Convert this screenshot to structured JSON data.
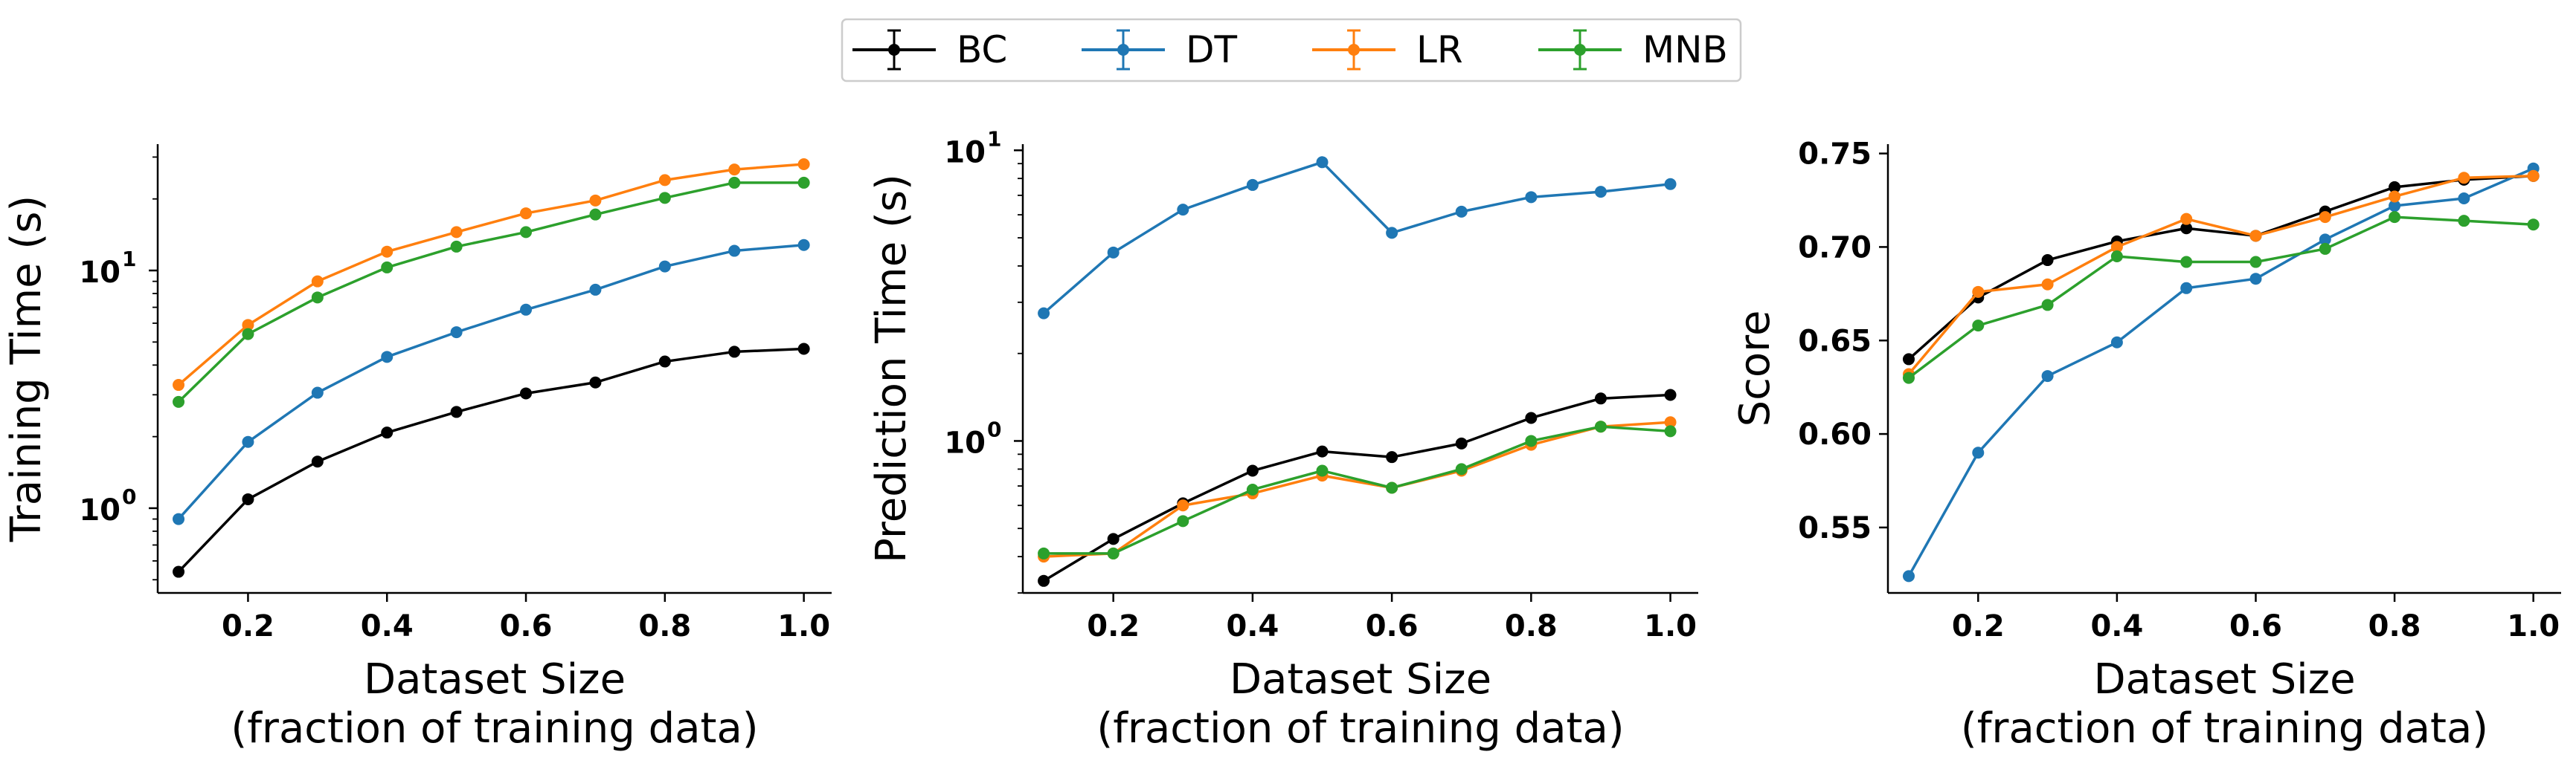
{
  "legend": {
    "placement": "top-center",
    "entries": [
      {
        "name": "BC",
        "color": "#000000"
      },
      {
        "name": "DT",
        "color": "#1f77b4"
      },
      {
        "name": "LR",
        "color": "#ff7f0e"
      },
      {
        "name": "MNB",
        "color": "#2ca02c"
      }
    ]
  },
  "chart_data": [
    {
      "type": "line",
      "ylabel": "Training Time (s)",
      "xlabel_lines": [
        "Dataset Size",
        "(fraction of training data)"
      ],
      "yscale": "log",
      "xlim": [
        0.07,
        1.04
      ],
      "ylim": [
        0.44,
        34
      ],
      "xticks": [
        "0.2",
        "0.4",
        "0.6",
        "0.8",
        "1.0"
      ],
      "yticks": [
        {
          "value": 1,
          "base": "10",
          "exp": "0"
        },
        {
          "value": 10,
          "base": "10",
          "exp": "1"
        }
      ],
      "x": [
        0.1,
        0.2,
        0.3,
        0.4,
        0.5,
        0.6,
        0.7,
        0.8,
        0.9,
        1.0
      ],
      "series": [
        {
          "name": "BC",
          "values": [
            0.54,
            1.09,
            1.57,
            2.08,
            2.54,
            3.04,
            3.38,
            4.14,
            4.55,
            4.68
          ]
        },
        {
          "name": "DT",
          "values": [
            0.9,
            1.9,
            3.06,
            4.33,
            5.5,
            6.84,
            8.3,
            10.4,
            12.1,
            12.8
          ]
        },
        {
          "name": "LR",
          "values": [
            3.3,
            5.9,
            9.0,
            12.0,
            14.5,
            17.4,
            19.7,
            24.0,
            26.6,
            28.0
          ]
        },
        {
          "name": "MNB",
          "values": [
            2.8,
            5.4,
            7.7,
            10.3,
            12.6,
            14.5,
            17.2,
            20.2,
            23.4,
            23.4
          ]
        }
      ]
    },
    {
      "type": "line",
      "ylabel": "Prediction Time (s)",
      "xlabel_lines": [
        "Dataset Size",
        "(fraction of training data)"
      ],
      "yscale": "log",
      "xlim": [
        0.07,
        1.04
      ],
      "ylim": [
        0.3,
        10.5
      ],
      "xticks": [
        "0.2",
        "0.4",
        "0.6",
        "0.8",
        "1.0"
      ],
      "yticks": [
        {
          "value": 1,
          "base": "10",
          "exp": "0"
        },
        {
          "value": 10,
          "base": "10",
          "exp": "1"
        }
      ],
      "x": [
        0.1,
        0.2,
        0.3,
        0.4,
        0.5,
        0.6,
        0.7,
        0.8,
        0.9,
        1.0
      ],
      "series": [
        {
          "name": "BC",
          "values": [
            0.33,
            0.46,
            0.61,
            0.79,
            0.92,
            0.88,
            0.98,
            1.2,
            1.4,
            1.44
          ]
        },
        {
          "name": "DT",
          "values": [
            2.75,
            4.45,
            6.25,
            7.6,
            9.1,
            5.2,
            6.15,
            6.9,
            7.2,
            7.65
          ]
        },
        {
          "name": "LR",
          "values": [
            0.4,
            0.41,
            0.6,
            0.66,
            0.76,
            0.69,
            0.79,
            0.97,
            1.12,
            1.16
          ]
        },
        {
          "name": "MNB",
          "values": [
            0.41,
            0.41,
            0.53,
            0.68,
            0.79,
            0.69,
            0.8,
            1.0,
            1.12,
            1.08
          ]
        }
      ]
    },
    {
      "type": "line",
      "ylabel": "Score",
      "xlabel_lines": [
        "Dataset Size",
        "(fraction of training data)"
      ],
      "yscale": "linear",
      "xlim": [
        0.07,
        1.04
      ],
      "ylim": [
        0.515,
        0.755
      ],
      "xticks": [
        "0.2",
        "0.4",
        "0.6",
        "0.8",
        "1.0"
      ],
      "yticks": [
        "0.55",
        "0.60",
        "0.65",
        "0.70",
        "0.75"
      ],
      "x": [
        0.1,
        0.2,
        0.3,
        0.4,
        0.5,
        0.6,
        0.7,
        0.8,
        0.9,
        1.0
      ],
      "series": [
        {
          "name": "BC",
          "values": [
            0.64,
            0.673,
            0.693,
            0.703,
            0.71,
            0.706,
            0.719,
            0.732,
            0.736,
            0.738
          ]
        },
        {
          "name": "DT",
          "values": [
            0.524,
            0.59,
            0.631,
            0.649,
            0.678,
            0.683,
            0.704,
            0.722,
            0.726,
            0.742
          ]
        },
        {
          "name": "LR",
          "values": [
            0.632,
            0.676,
            0.68,
            0.7,
            0.715,
            0.706,
            0.716,
            0.727,
            0.737,
            0.738
          ]
        },
        {
          "name": "MNB",
          "values": [
            0.63,
            0.658,
            0.669,
            0.695,
            0.692,
            0.692,
            0.699,
            0.716,
            0.714,
            0.712
          ]
        }
      ]
    }
  ]
}
